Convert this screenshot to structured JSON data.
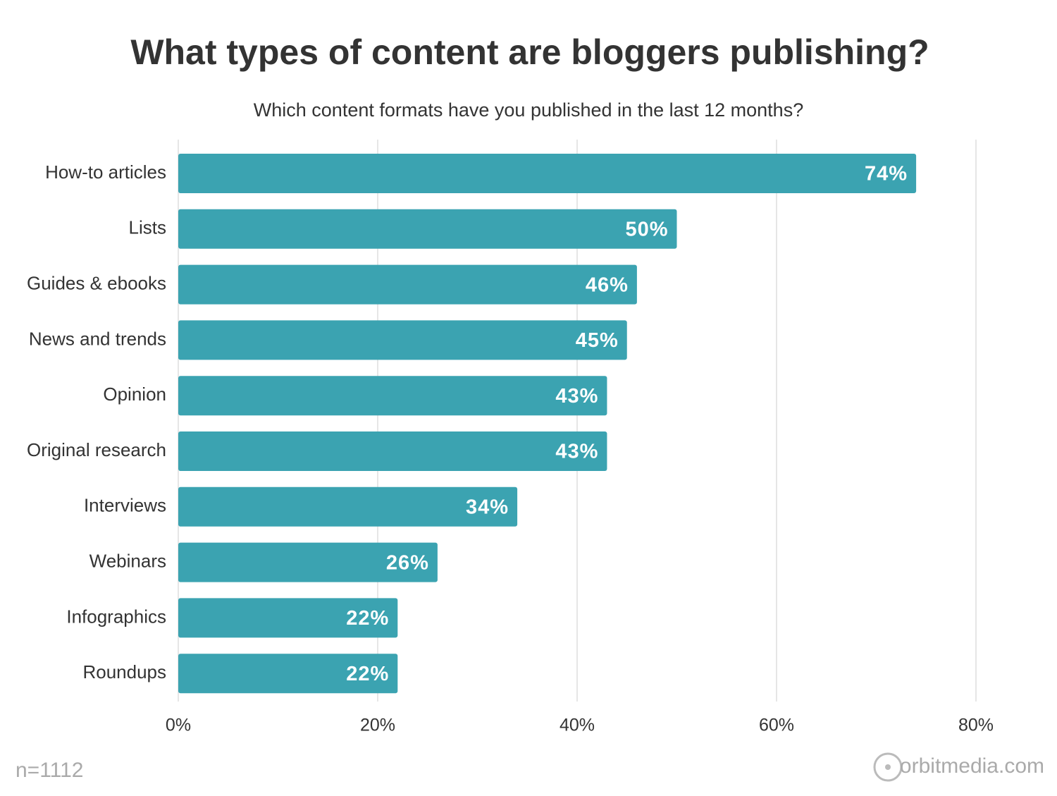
{
  "chart_data": {
    "type": "hbar",
    "title": "What types of content are bloggers publishing?",
    "subtitle": "Which content formats have you published in the last 12 months?",
    "categories": [
      "How-to articles",
      "Lists",
      "Guides & ebooks",
      "News and trends",
      "Opinion",
      "Original research",
      "Interviews",
      "Webinars",
      "Infographics",
      "Roundups"
    ],
    "values": [
      74,
      50,
      46,
      45,
      43,
      43,
      34,
      26,
      22,
      22
    ],
    "value_labels": [
      "74%",
      "50%",
      "46%",
      "45%",
      "43%",
      "43%",
      "34%",
      "26%",
      "22%",
      "22%"
    ],
    "color": "#3ba3b1",
    "xlim": [
      0,
      80
    ],
    "xticks": [
      {
        "value": 0,
        "label": "0%"
      },
      {
        "value": 20,
        "label": "20%"
      },
      {
        "value": 40,
        "label": "40%"
      },
      {
        "value": 60,
        "label": "60%"
      },
      {
        "value": 80,
        "label": "80%"
      }
    ],
    "grid": true,
    "note": "n=1112",
    "source": "orbitmedia.com"
  }
}
